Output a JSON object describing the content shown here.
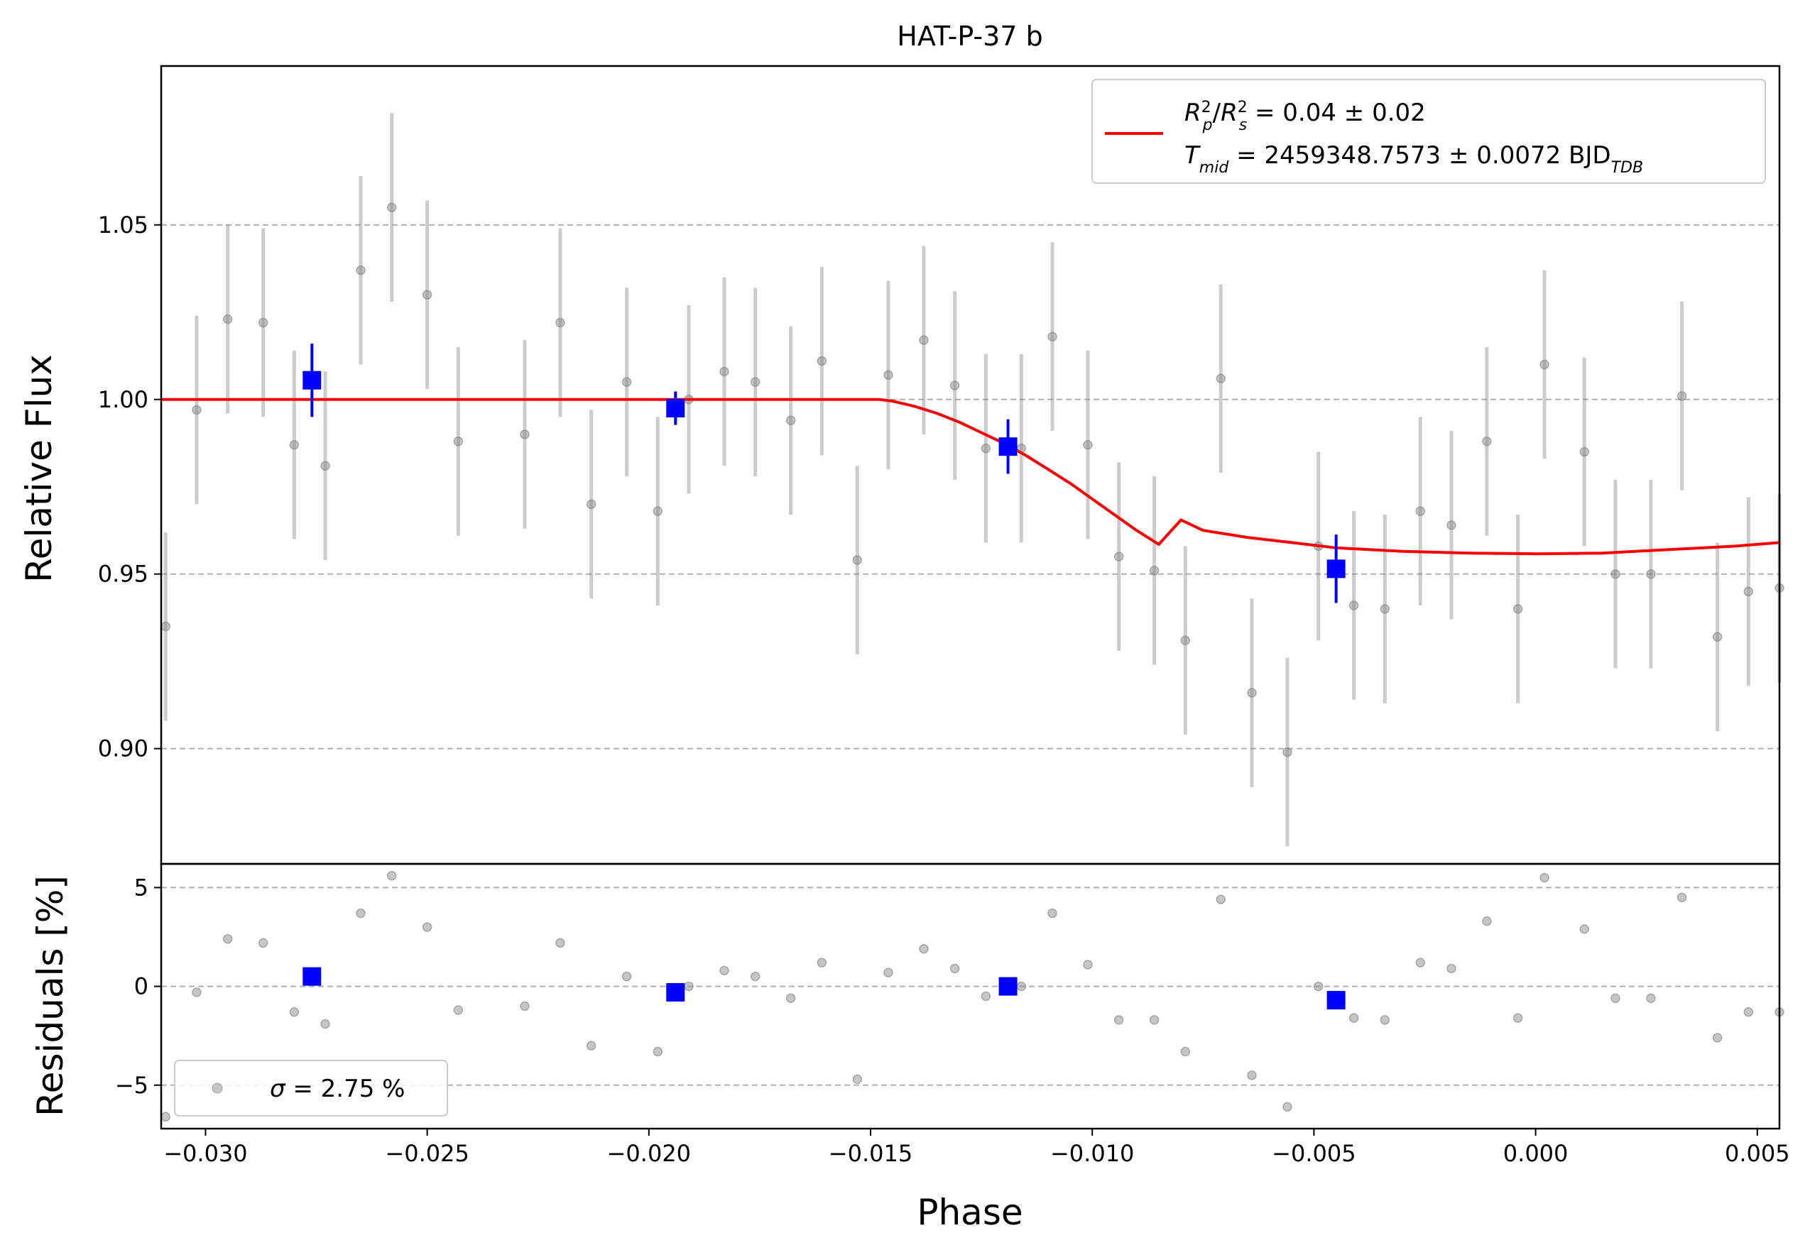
{
  "chart_data": [
    {
      "panel": "flux",
      "type": "scatter",
      "title": "HAT-P-37 b",
      "ylabel": "Relative Flux",
      "xlim": [
        -0.031,
        0.0055
      ],
      "ylim": [
        0.867,
        1.0955
      ],
      "yticks": [
        0.9,
        0.95,
        1.0,
        1.05
      ],
      "ytick_labels": [
        "0.90",
        "0.95",
        "1.00",
        "1.05"
      ],
      "grid": "y-dashed",
      "legend": {
        "position": "top-right",
        "line1": "R_p^2/R_s^2 = 0.04 ± 0.02",
        "line2": "T_mid = 2459348.7573 ± 0.0072 BJD_TDB"
      },
      "colors": {
        "raw": "#808080",
        "binned": "#0000ff",
        "model": "#ff0000"
      },
      "series": [
        {
          "kind": "raw",
          "x": [
            -0.0309,
            -0.0302,
            -0.0295,
            -0.0287,
            -0.028,
            -0.0273,
            -0.0265,
            -0.0258,
            -0.025,
            -0.0243,
            -0.0228,
            -0.022,
            -0.0213,
            -0.0205,
            -0.0198,
            -0.0191,
            -0.0183,
            -0.0176,
            -0.0168,
            -0.0161,
            -0.0153,
            -0.0146,
            -0.0138,
            -0.0131,
            -0.0124,
            -0.0116,
            -0.0109,
            -0.0101,
            -0.0094,
            -0.0086,
            -0.0079,
            -0.0071,
            -0.0064,
            -0.0056,
            -0.0049,
            -0.0041,
            -0.0034,
            -0.0026,
            -0.0019,
            -0.0011,
            -0.0004,
            0.0002,
            0.0011,
            0.0018,
            0.0026,
            0.0033,
            0.0041,
            0.0048,
            0.0055
          ],
          "y": [
            0.935,
            0.997,
            1.023,
            1.022,
            0.987,
            0.981,
            1.037,
            1.055,
            1.03,
            0.988,
            0.99,
            1.022,
            0.97,
            1.005,
            0.968,
            1.0,
            1.008,
            1.005,
            0.994,
            1.011,
            0.954,
            1.007,
            1.017,
            1.004,
            0.986,
            0.986,
            1.018,
            0.987,
            0.955,
            0.951,
            0.931,
            1.006,
            0.916,
            0.899,
            0.958,
            0.941,
            0.94,
            0.968,
            0.964,
            0.988,
            0.94,
            1.01,
            0.985,
            0.95,
            0.95,
            1.001,
            0.932,
            0.945,
            0.946
          ],
          "yerr": 0.027
        },
        {
          "kind": "binned",
          "x": [
            -0.0276,
            -0.0194,
            -0.0119,
            -0.0045
          ],
          "y": [
            1.0055,
            0.9975,
            0.9865,
            0.9515
          ],
          "yerr": [
            0.0105,
            0.0048,
            0.0078,
            0.0098
          ]
        },
        {
          "kind": "model",
          "x": [
            -0.031,
            -0.0148,
            -0.0145,
            -0.014,
            -0.0135,
            -0.013,
            -0.0125,
            -0.012,
            -0.0115,
            -0.011,
            -0.0105,
            -0.01,
            -0.0095,
            -0.009,
            -0.0085,
            -0.008,
            -0.0075,
            -0.0065,
            -0.0055,
            -0.0045,
            -0.003,
            -0.0015,
            0.0,
            0.0015,
            0.003,
            0.0045,
            0.0055
          ],
          "y": [
            1.0,
            1.0,
            0.9995,
            0.998,
            0.996,
            0.9935,
            0.9905,
            0.9875,
            0.984,
            0.98,
            0.976,
            0.9715,
            0.967,
            0.9625,
            0.9585,
            0.9655,
            0.9625,
            0.9605,
            0.959,
            0.9575,
            0.9565,
            0.956,
            0.9558,
            0.956,
            0.957,
            0.958,
            0.959
          ]
        }
      ]
    },
    {
      "panel": "residuals",
      "type": "scatter",
      "xlabel": "Phase",
      "ylabel": "Residuals [%]",
      "xlim": [
        -0.031,
        0.0055
      ],
      "ylim": [
        -7.2,
        6.2
      ],
      "yticks": [
        -5,
        0,
        5
      ],
      "ytick_labels": [
        "−5",
        "0",
        "5"
      ],
      "xticks": [
        -0.03,
        -0.025,
        -0.02,
        -0.015,
        -0.01,
        -0.005,
        0.0,
        0.005
      ],
      "xtick_labels": [
        "−0.030",
        "−0.025",
        "−0.020",
        "−0.015",
        "−0.010",
        "−0.005",
        "0.000",
        "0.005"
      ],
      "grid": "y-dashed",
      "legend": {
        "position": "bottom-left",
        "text": "σ = 2.75 %"
      },
      "series": [
        {
          "kind": "raw",
          "x": [
            -0.0309,
            -0.0302,
            -0.0295,
            -0.0287,
            -0.028,
            -0.0273,
            -0.0265,
            -0.0258,
            -0.025,
            -0.0243,
            -0.0228,
            -0.022,
            -0.0213,
            -0.0205,
            -0.0198,
            -0.0191,
            -0.0183,
            -0.0176,
            -0.0168,
            -0.0161,
            -0.0153,
            -0.0146,
            -0.0138,
            -0.0131,
            -0.0124,
            -0.0116,
            -0.0109,
            -0.0101,
            -0.0094,
            -0.0086,
            -0.0079,
            -0.0071,
            -0.0064,
            -0.0056,
            -0.0049,
            -0.0041,
            -0.0034,
            -0.0026,
            -0.0019,
            -0.0011,
            -0.0004,
            0.0002,
            0.0011,
            0.0018,
            0.0026,
            0.0033,
            0.0041,
            0.0048,
            0.0055
          ],
          "y": [
            -6.6,
            -0.3,
            2.4,
            2.2,
            -1.3,
            -1.9,
            3.7,
            5.6,
            3.0,
            -1.2,
            -1.0,
            2.2,
            -3.0,
            0.5,
            -3.3,
            0.0,
            0.8,
            0.5,
            -0.6,
            1.2,
            -4.7,
            0.7,
            1.9,
            0.9,
            -0.5,
            0.0,
            3.7,
            1.1,
            -1.7,
            -1.7,
            -3.3,
            4.4,
            -4.5,
            -6.1,
            0.0,
            -1.6,
            -1.7,
            1.2,
            0.9,
            3.3,
            -1.6,
            5.5,
            2.9,
            -0.6,
            -0.6,
            4.5,
            -2.6,
            -1.3,
            -1.3
          ]
        },
        {
          "kind": "binned",
          "x": [
            -0.0276,
            -0.0194,
            -0.0119,
            -0.0045
          ],
          "y": [
            0.5,
            -0.3,
            0.0,
            -0.7
          ]
        }
      ]
    }
  ]
}
